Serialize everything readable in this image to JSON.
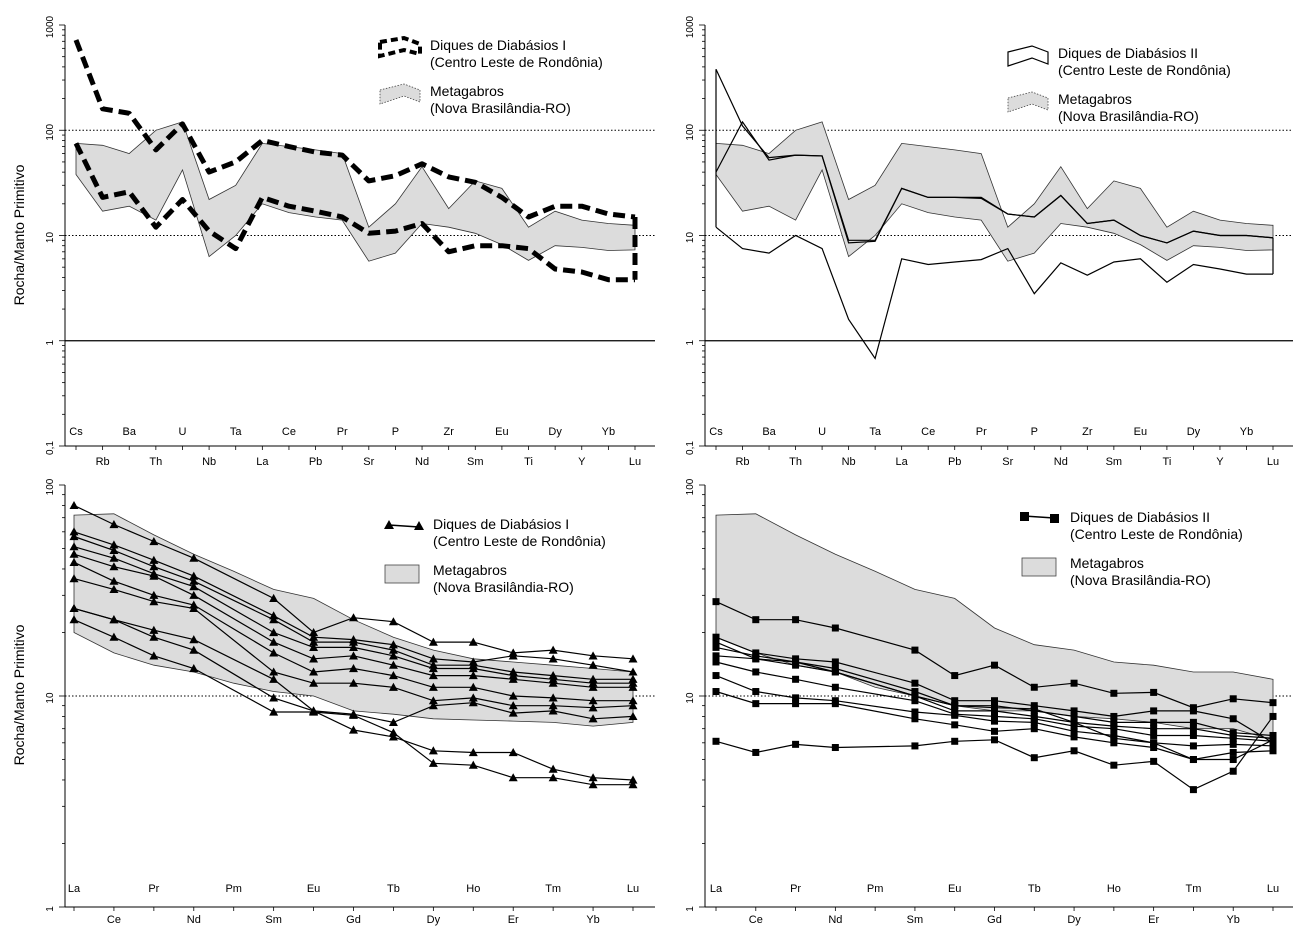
{
  "figure": {
    "y_axis_label": "Rocha/Manto Primitivo"
  },
  "chart_data": [
    {
      "type": "line",
      "panel": "top-left",
      "ylabel": "Rocha/Manto Primitivo",
      "yscale": "log",
      "ylim": [
        0.1,
        1000
      ],
      "y_ticks": [
        "0,1",
        "1",
        "10",
        "100",
        "1000"
      ],
      "reference_lines": [
        1,
        10,
        100
      ],
      "categories": [
        "Cs",
        "Rb",
        "Ba",
        "Th",
        "U",
        "Nb",
        "Ta",
        "La",
        "Ce",
        "Pb",
        "Pr",
        "Sr",
        "P",
        "Nd",
        "Zr",
        "Sm",
        "Eu",
        "Ti",
        "Dy",
        "Y",
        "Yb",
        "Lu"
      ],
      "legend": [
        {
          "label": "Diques de Diabásios I",
          "sub": "(Centro Leste de Rondônia)",
          "style": "dashed"
        },
        {
          "label": "Metagabros",
          "sub": "(Nova Brasilândia-RO)",
          "style": "band"
        }
      ],
      "band": {
        "upper": [
          75,
          72,
          60,
          100,
          120,
          22,
          30,
          75,
          70,
          65,
          60,
          12,
          20,
          45,
          18,
          33,
          28,
          12,
          17,
          14,
          13,
          12.5
        ],
        "lower": [
          38,
          17,
          19,
          14,
          42,
          6.3,
          10,
          20,
          16.5,
          15,
          14,
          5.7,
          6.8,
          13,
          12,
          10.5,
          8.2,
          5.8,
          8,
          7.7,
          7.2,
          7.3
        ]
      },
      "series": [
        {
          "values": [
            720,
            160,
            145,
            65,
            115,
            40,
            50,
            80,
            70,
            62,
            58,
            33,
            37,
            48,
            36,
            32,
            23,
            15,
            19,
            19,
            16,
            15
          ]
        },
        {
          "values": [
            75,
            23,
            26,
            12,
            22,
            11,
            7.5,
            23,
            19,
            17,
            15,
            10.5,
            11,
            13,
            7,
            8,
            8,
            7.5,
            4.8,
            4.5,
            3.8,
            3.8
          ]
        }
      ]
    },
    {
      "type": "line",
      "panel": "top-right",
      "yscale": "log",
      "ylim": [
        0.1,
        1000
      ],
      "y_ticks": [
        "0,1",
        "1",
        "10",
        "100",
        "1000"
      ],
      "reference_lines": [
        1,
        10,
        100
      ],
      "categories": [
        "Cs",
        "Rb",
        "Ba",
        "Th",
        "U",
        "Nb",
        "Ta",
        "La",
        "Ce",
        "Pb",
        "Pr",
        "Sr",
        "P",
        "Nd",
        "Zr",
        "Sm",
        "Eu",
        "Ti",
        "Dy",
        "Y",
        "Yb",
        "Lu"
      ],
      "legend": [
        {
          "label": "Diques de Diabásios II",
          "sub": "(Centro Leste de Rondônia)",
          "style": "outline"
        },
        {
          "label": "Metagabros",
          "sub": "(Nova Brasilândia-RO)",
          "style": "band"
        }
      ],
      "band": {
        "upper": [
          75,
          72,
          60,
          100,
          120,
          22,
          30,
          75,
          70,
          65,
          60,
          12,
          20,
          45,
          18,
          33,
          28,
          12,
          17,
          14,
          13,
          12.5
        ],
        "lower": [
          38,
          17,
          19,
          14,
          42,
          6.3,
          10,
          20,
          16.5,
          15,
          14,
          5.7,
          6.8,
          13,
          12,
          10.5,
          8.2,
          5.8,
          8,
          7.7,
          7.2,
          7.3
        ]
      },
      "series": [
        {
          "values": [
            40,
            120,
            52,
            58,
            57,
            8.5,
            8.8,
            28,
            23,
            23,
            22.5,
            16,
            15,
            24,
            13,
            14,
            10,
            8.5,
            11,
            10,
            10,
            9.5
          ]
        },
        {
          "values": [
            380,
            110,
            55,
            58,
            57,
            9,
            9,
            28,
            23,
            23,
            23,
            16,
            15,
            24,
            13,
            14,
            10,
            8.5,
            11,
            10,
            10,
            9.5
          ]
        },
        {
          "values": [
            12,
            7.5,
            6.8,
            10,
            7.5,
            1.6,
            0.68,
            6,
            5.3,
            5.6,
            5.9,
            7.5,
            2.8,
            5.5,
            4.2,
            5.6,
            6,
            3.6,
            5.3,
            4.8,
            4.3,
            4.3
          ]
        }
      ]
    },
    {
      "type": "line",
      "panel": "bottom-left",
      "ylabel": "Rocha/Manto Primitivo",
      "yscale": "log",
      "ylim": [
        1,
        100
      ],
      "y_ticks": [
        "1",
        "10",
        "100"
      ],
      "reference_lines": [
        10
      ],
      "categories": [
        "La",
        "Ce",
        "Pr",
        "Nd",
        "Pm",
        "Sm",
        "Eu",
        "Gd",
        "Tb",
        "Dy",
        "Ho",
        "Er",
        "Tm",
        "Yb",
        "Lu"
      ],
      "legend": [
        {
          "label": "Diques de Diabásios I",
          "sub": "(Centro Leste de Rondônia)",
          "style": "triangle"
        },
        {
          "label": "Metagabros",
          "sub": "(Nova Brasilândia-RO)",
          "style": "band"
        }
      ],
      "band": {
        "upper": [
          72,
          73,
          58,
          47,
          39,
          32,
          29,
          23,
          19,
          16.5,
          15,
          14.5,
          14,
          13.5,
          13
        ],
        "lower": [
          20,
          16,
          14,
          13,
          11.5,
          10.5,
          10,
          8.5,
          8.2,
          7.8,
          7.7,
          7.6,
          7.5,
          7.2,
          7.5
        ]
      },
      "series": [
        {
          "values": [
            80,
            65,
            54,
            45,
            null,
            29,
            20,
            23.5,
            22.5,
            18,
            18,
            16,
            16.5,
            15.5,
            15
          ]
        },
        {
          "values": [
            60,
            52,
            44,
            37,
            null,
            24,
            19,
            18.5,
            17.5,
            15,
            14.5,
            15.5,
            15,
            14,
            13
          ]
        },
        {
          "values": [
            57,
            49,
            41,
            35,
            null,
            23,
            18,
            18,
            16.5,
            14,
            14,
            13,
            12.5,
            12,
            12
          ]
        },
        {
          "values": [
            51,
            45,
            38,
            33,
            null,
            20,
            17,
            17,
            15.5,
            13.5,
            13.5,
            12.5,
            12,
            11.5,
            11.5
          ]
        },
        {
          "values": [
            47,
            41,
            37,
            30,
            null,
            18,
            15,
            15.5,
            14,
            12.5,
            12.5,
            12,
            11.5,
            11,
            11
          ]
        },
        {
          "values": [
            43,
            35,
            30,
            27,
            null,
            16,
            13,
            13.5,
            12.5,
            11,
            11,
            10,
            9.8,
            9.5,
            9.5
          ]
        },
        {
          "values": [
            36,
            32,
            28,
            26,
            null,
            13,
            11.5,
            11.5,
            11,
            9.5,
            9.8,
            9,
            9,
            8.8,
            9
          ]
        },
        {
          "values": [
            26,
            23,
            20.5,
            18.5,
            null,
            12,
            8.5,
            8.2,
            7.5,
            9,
            9.3,
            8.3,
            8.5,
            7.8,
            8
          ]
        },
        {
          "values": [
            26,
            23,
            19,
            16.5,
            null,
            9.8,
            8.5,
            6.9,
            6.4,
            5.5,
            5.4,
            5.4,
            4.5,
            4.1,
            4
          ]
        },
        {
          "values": [
            23,
            19,
            15.5,
            13.5,
            null,
            8.4,
            8.4,
            8.1,
            6.7,
            4.8,
            4.7,
            4.1,
            4.1,
            3.8,
            3.8
          ]
        }
      ]
    },
    {
      "type": "line",
      "panel": "bottom-right",
      "yscale": "log",
      "ylim": [
        1,
        100
      ],
      "y_ticks": [
        "1",
        "10",
        "100"
      ],
      "reference_lines": [
        10
      ],
      "categories": [
        "La",
        "Ce",
        "Pr",
        "Nd",
        "Pm",
        "Sm",
        "Eu",
        "Gd",
        "Tb",
        "Dy",
        "Ho",
        "Er",
        "Tm",
        "Yb",
        "Lu"
      ],
      "legend": [
        {
          "label": "Diques de Diabásios II",
          "sub": "(Centro Leste de Rondônia)",
          "style": "square"
        },
        {
          "label": "Metagabros",
          "sub": "(Nova Brasilândia-RO)",
          "style": "band"
        }
      ],
      "band": {
        "upper": [
          72,
          73,
          58,
          47,
          39,
          32,
          29,
          21,
          17.5,
          16.5,
          14.5,
          14,
          13,
          13,
          12
        ],
        "lower": [
          19,
          16,
          14,
          13,
          11,
          10,
          9,
          8.5,
          8.5,
          8,
          7.8,
          7.5,
          7,
          7,
          6.2
        ]
      },
      "series": [
        {
          "values": [
            28,
            23,
            23,
            21,
            null,
            16.5,
            12.5,
            14,
            11,
            11.5,
            10.3,
            10.4,
            8.8,
            9.7,
            9.3
          ]
        },
        {
          "values": [
            19,
            16,
            15,
            14.5,
            null,
            11.5,
            9.5,
            9.5,
            9,
            8.5,
            8,
            8.5,
            8.5,
            7.8,
            6
          ]
        },
        {
          "values": [
            17,
            15.5,
            14.5,
            13.5,
            null,
            10.5,
            9,
            9,
            8.5,
            8,
            7.5,
            7.5,
            7.5,
            6.7,
            6.5
          ]
        },
        {
          "values": [
            15.5,
            15,
            14,
            13,
            null,
            10,
            8.5,
            8.5,
            8,
            7.5,
            7.2,
            7,
            7,
            6.5,
            6.3
          ]
        },
        {
          "values": [
            14.5,
            13,
            12,
            11,
            null,
            9.5,
            8.2,
            8,
            7.8,
            7.2,
            7,
            6.5,
            6.5,
            6.3,
            6.1
          ]
        },
        {
          "values": [
            12.5,
            10.5,
            9.8,
            9.5,
            null,
            8.4,
            8.1,
            7.6,
            7.5,
            6.8,
            6.5,
            6,
            5.8,
            5.9,
            5.8
          ]
        },
        {
          "values": [
            10.5,
            9.2,
            9.2,
            9.2,
            null,
            7.8,
            7.3,
            6.8,
            7,
            6.4,
            6,
            5.7,
            5,
            5.4,
            5.5
          ]
        },
        {
          "values": [
            6.1,
            5.4,
            5.9,
            5.7,
            null,
            5.8,
            6.1,
            6.2,
            5.1,
            5.5,
            4.7,
            4.9,
            3.6,
            4.4,
            8
          ]
        },
        {
          "values": [
            18,
            15,
            14.5,
            13,
            null,
            10,
            9,
            8.8,
            8.7,
            7.5,
            6.3,
            6,
            5,
            5,
            6.2
          ]
        }
      ]
    }
  ]
}
